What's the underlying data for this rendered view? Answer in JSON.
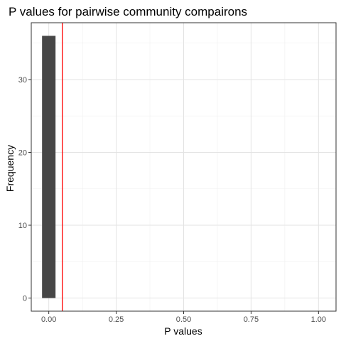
{
  "chart_data": {
    "type": "bar",
    "title": "P values for pairwise community compairons",
    "xlabel": "P values",
    "ylabel": "Frequency",
    "xlim": [
      -0.065,
      1.065
    ],
    "ylim": [
      -1.8,
      37.8
    ],
    "x_ticks": [
      0.0,
      0.25,
      0.5,
      0.75,
      1.0
    ],
    "x_tick_labels": [
      "0.00",
      "0.25",
      "0.50",
      "0.75",
      "1.00"
    ],
    "y_ticks": [
      0,
      10,
      20,
      30
    ],
    "y_tick_labels": [
      "0",
      "10",
      "20",
      "30"
    ],
    "bins": [
      {
        "x_start": -0.025,
        "x_end": 0.025,
        "count": 36
      }
    ],
    "reference_line": {
      "x": 0.05,
      "color": "#ff0000"
    },
    "bar_color": "#474747",
    "grid": true,
    "legend": "none"
  }
}
